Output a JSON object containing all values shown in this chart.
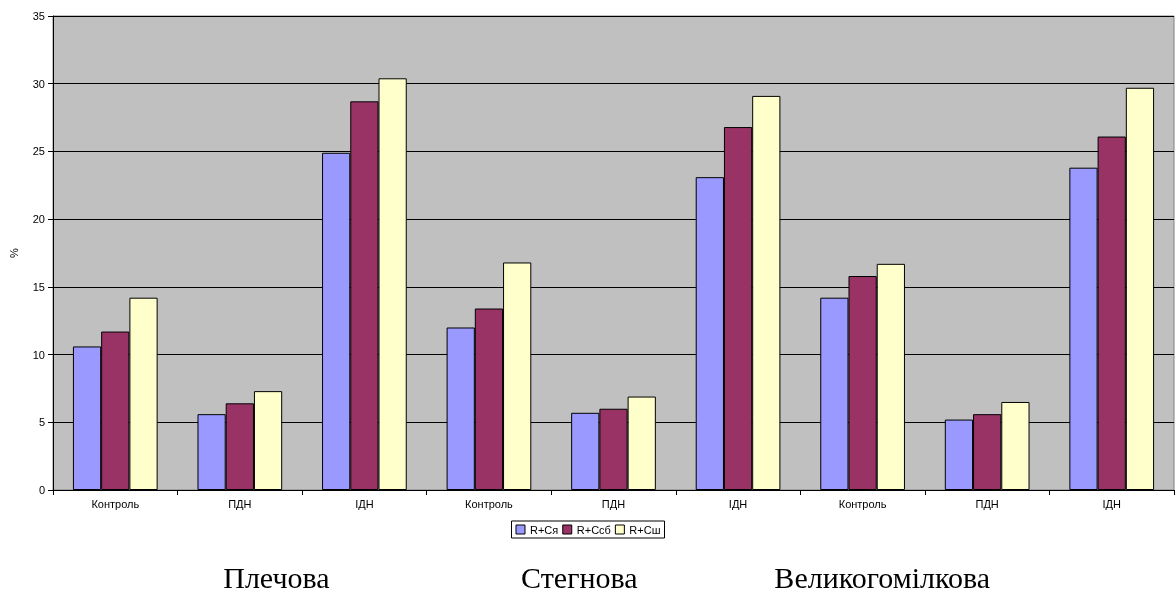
{
  "chart_data": {
    "type": "bar",
    "ylabel": "%",
    "categories": [
      "Контроль",
      "ПДН",
      "ІДН",
      "Контроль",
      "ПДН",
      "ІДН",
      "Контроль",
      "ПДН",
      "ІДН"
    ],
    "series": [
      {
        "name": "R+Ся",
        "color": "#9999ff",
        "values": [
          10.6,
          5.6,
          24.9,
          12.0,
          5.7,
          23.1,
          14.2,
          5.2,
          23.8
        ]
      },
      {
        "name": "R+Ссб",
        "color": "#993366",
        "values": [
          11.7,
          6.4,
          28.7,
          13.4,
          6.0,
          26.8,
          15.8,
          5.6,
          26.1
        ]
      },
      {
        "name": "R+Сш",
        "color": "#ffffcc",
        "values": [
          14.2,
          7.3,
          30.4,
          16.8,
          6.9,
          29.1,
          16.7,
          6.5,
          29.7
        ]
      }
    ],
    "ylim": [
      0,
      35
    ],
    "yticks": [
      0,
      5,
      10,
      15,
      20,
      25,
      30,
      35
    ],
    "grid": "y",
    "legend": "bottom",
    "annotations": [
      "Плечова",
      "Стегнова",
      "Великогомілкова"
    ]
  }
}
